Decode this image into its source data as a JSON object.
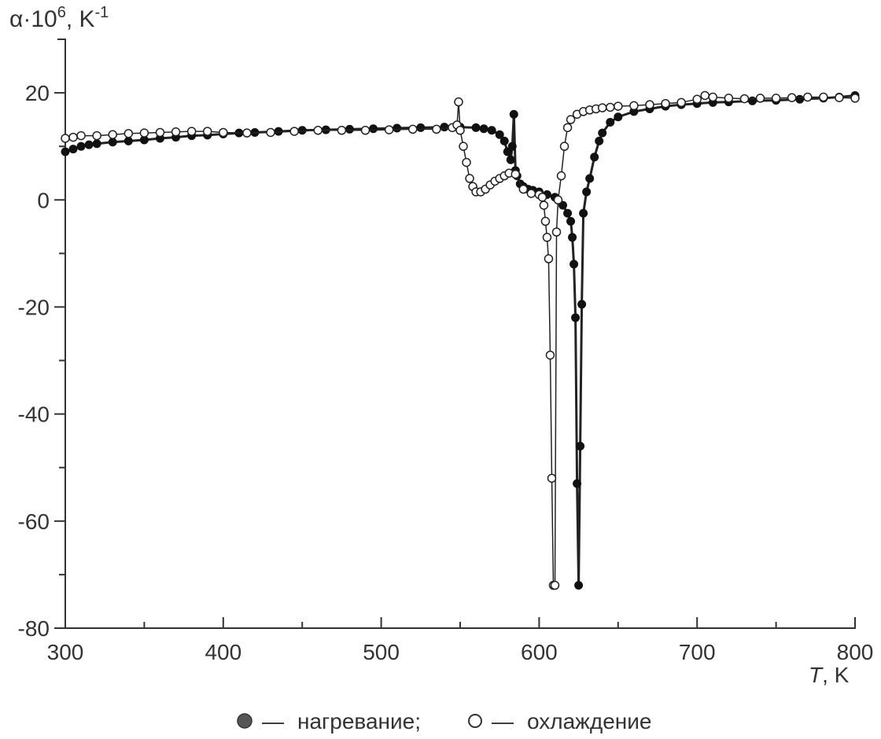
{
  "chart_data": {
    "type": "line",
    "title": "",
    "ylabel_main": "α·10",
    "ylabel_exp": "6",
    "ylabel_unit": ", K",
    "ylabel_unit_exp": "-1",
    "xlabel_var": "T",
    "xlabel_unit": ", K",
    "xlim": [
      300,
      800
    ],
    "ylim": [
      -80,
      30
    ],
    "x_ticks": [
      300,
      400,
      500,
      600,
      700,
      800
    ],
    "x_tick_labels": [
      "300",
      "400",
      "500",
      "600",
      "700",
      "800"
    ],
    "y_ticks": [
      20,
      0,
      -20,
      -40,
      -60,
      -80
    ],
    "y_tick_labels": [
      "20",
      "0",
      "-20",
      "-40",
      "-60",
      "-80"
    ],
    "grid": false,
    "legend_placement": "bottom-center",
    "legend_separator": "—",
    "series": [
      {
        "name": "нагревание;",
        "marker": "filled",
        "x": [
          300,
          305,
          310,
          315,
          320,
          330,
          340,
          350,
          360,
          370,
          380,
          390,
          400,
          410,
          420,
          435,
          450,
          465,
          480,
          495,
          510,
          525,
          540,
          550,
          560,
          565,
          570,
          575,
          578,
          580,
          582,
          583,
          584,
          585,
          586,
          588,
          590,
          593,
          596,
          600,
          605,
          610,
          615,
          618,
          620,
          621,
          622,
          623,
          624,
          625,
          626,
          627,
          628,
          630,
          632,
          635,
          638,
          640,
          645,
          650,
          660,
          670,
          680,
          690,
          700,
          710,
          720,
          735,
          750,
          765,
          780,
          790,
          800
        ],
        "y": [
          9,
          9.5,
          10,
          10.3,
          10.5,
          10.8,
          11,
          11.2,
          11.5,
          11.7,
          12,
          12.1,
          12.3,
          12.5,
          12.6,
          12.8,
          13,
          13.1,
          13.2,
          13.3,
          13.4,
          13.5,
          13.6,
          13.6,
          13.5,
          13.3,
          13,
          12.2,
          11,
          9,
          7.5,
          10,
          16,
          5.5,
          4.5,
          3,
          2.5,
          2,
          1.8,
          1.5,
          1,
          0.5,
          -1,
          -2.5,
          -4,
          -7,
          -12,
          -22,
          -53,
          -72,
          -46,
          -19.5,
          -2.5,
          1.5,
          4,
          8,
          11,
          12.5,
          14.5,
          15.5,
          16.5,
          17,
          17.5,
          17.8,
          18,
          18.2,
          18.3,
          18.5,
          18.6,
          18.8,
          19,
          19.2,
          19.5
        ]
      },
      {
        "name": "охлаждение",
        "marker": "open",
        "x": [
          300,
          305,
          310,
          320,
          330,
          340,
          350,
          360,
          370,
          380,
          390,
          400,
          415,
          430,
          445,
          460,
          475,
          490,
          505,
          520,
          535,
          545,
          548,
          549,
          550,
          552,
          554,
          556,
          558,
          560,
          563,
          566,
          569,
          572,
          575,
          578,
          581,
          585,
          590,
          595,
          600,
          602,
          603,
          604,
          605,
          606,
          607,
          608,
          609,
          610,
          611,
          612,
          614,
          616,
          618,
          620,
          624,
          628,
          632,
          636,
          640,
          645,
          650,
          660,
          670,
          680,
          690,
          700,
          705,
          710,
          720,
          730,
          740,
          750,
          760,
          770,
          780,
          790,
          800
        ],
        "y": [
          11.5,
          11.7,
          12,
          12,
          12.2,
          12.4,
          12.5,
          12.6,
          12.7,
          12.8,
          12.8,
          12.6,
          12.5,
          12.6,
          12.8,
          13,
          13,
          13,
          13.1,
          13.2,
          13.2,
          13.5,
          14,
          18.3,
          13,
          10,
          7,
          4,
          2.5,
          1.5,
          1.5,
          2,
          2.8,
          3.5,
          4,
          4.5,
          5,
          4.8,
          2,
          1.2,
          1,
          0.5,
          -1,
          -4,
          -7,
          -11,
          -29,
          -52,
          -72,
          -72,
          -6,
          0,
          4.5,
          10,
          13.5,
          15,
          16,
          16.5,
          16.8,
          17,
          17.2,
          17.3,
          17.5,
          17.6,
          17.8,
          18,
          18.2,
          18.8,
          19.5,
          19.2,
          19,
          18.9,
          19,
          19,
          19.1,
          19.2,
          19.2,
          19.1,
          19
        ]
      }
    ]
  }
}
